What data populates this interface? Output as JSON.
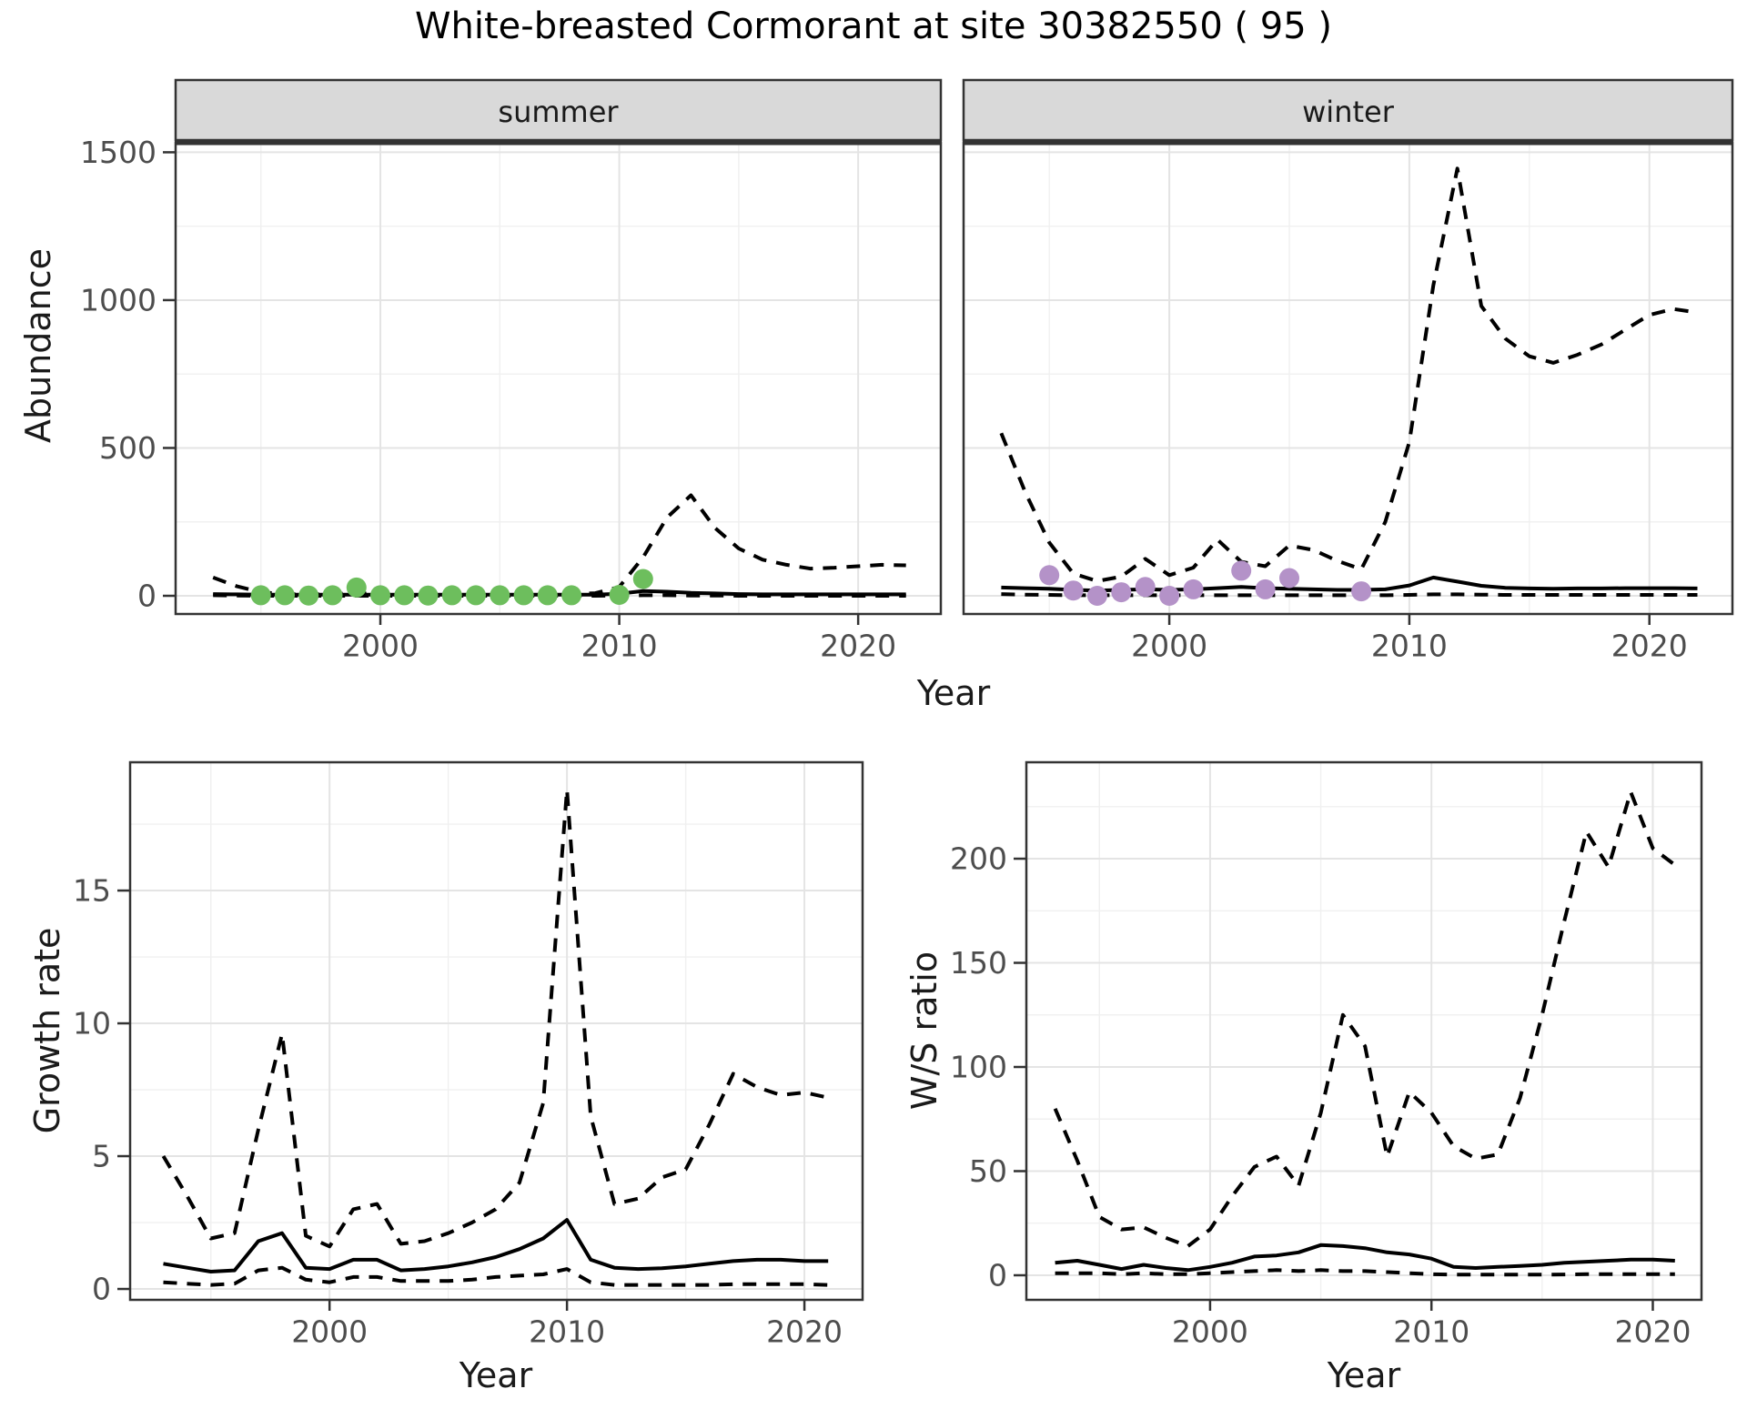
{
  "title": "White-breasted Cormorant at site 30382550 ( 95 )",
  "colors": {
    "summer_points": "#6dbe5d",
    "winter_points": "#b492c8",
    "line": "#000000",
    "strip_fill": "#d9d9d9",
    "strip_border": "#333333",
    "panel_border": "#333333",
    "grid_major": "#e4e4e4",
    "grid_minor": "#f0f0f0",
    "tick_mark": "#333333"
  },
  "chart_data": [
    {
      "type": "line",
      "facet_label": "summer",
      "xlabel": "Year",
      "ylabel": "Abundance",
      "xlim": [
        1993,
        2022
      ],
      "ylim": [
        0,
        1500
      ],
      "grid": true,
      "legend": "none",
      "x_ticks": [
        "2000",
        "2010",
        "2020"
      ],
      "x_tick_values": [
        2000,
        2010,
        2020
      ],
      "y_ticks": [
        "0",
        "500",
        "1000",
        "1500"
      ],
      "y_tick_values": [
        0,
        500,
        1000,
        1500
      ],
      "x": [
        1993,
        1994,
        1995,
        1996,
        1997,
        1998,
        1999,
        2000,
        2001,
        2002,
        2003,
        2004,
        2005,
        2006,
        2007,
        2008,
        2009,
        2010,
        2011,
        2012,
        2013,
        2014,
        2015,
        2016,
        2017,
        2018,
        2019,
        2020,
        2021,
        2022
      ],
      "series": [
        {
          "name": "fit",
          "line": "solid",
          "values": [
            6,
            5,
            4,
            4,
            4,
            4,
            4,
            4,
            4,
            4,
            4,
            4,
            4,
            4,
            4,
            4,
            4,
            7,
            16,
            14,
            10,
            8,
            6,
            5,
            5,
            5,
            5,
            5,
            5,
            5
          ]
        },
        {
          "name": "upper-ci",
          "line": "dashed",
          "values": [
            62,
            32,
            12,
            6,
            5,
            6,
            9,
            6,
            5,
            5,
            5,
            5,
            4,
            5,
            5,
            6,
            9,
            30,
            130,
            265,
            340,
            230,
            160,
            122,
            105,
            92,
            95,
            100,
            105,
            103
          ]
        },
        {
          "name": "lower-ci",
          "line": "dashed",
          "values": [
            2,
            1,
            0,
            0,
            0,
            0,
            0,
            0,
            0,
            0,
            0,
            0,
            0,
            0,
            0,
            0,
            0,
            1,
            2,
            2,
            1,
            1,
            0,
            0,
            0,
            0,
            0,
            0,
            0,
            0
          ]
        }
      ],
      "observations": {
        "color": "#6dbe5d",
        "x": [
          1995,
          1996,
          1997,
          1998,
          1999,
          2000,
          2001,
          2002,
          2003,
          2004,
          2005,
          2006,
          2007,
          2008,
          2010,
          2011
        ],
        "y": [
          2,
          2,
          1,
          2,
          28,
          2,
          2,
          1,
          2,
          2,
          2,
          2,
          2,
          2,
          3,
          57
        ]
      }
    },
    {
      "type": "line",
      "facet_label": "winter",
      "xlabel": "Year",
      "ylabel": "Abundance",
      "xlim": [
        1993,
        2022
      ],
      "ylim": [
        0,
        1500
      ],
      "grid": true,
      "legend": "none",
      "x_ticks": [
        "2000",
        "2010",
        "2020"
      ],
      "x_tick_values": [
        2000,
        2010,
        2020
      ],
      "y_ticks": [
        "0",
        "500",
        "1000",
        "1500"
      ],
      "y_tick_values": [
        0,
        500,
        1000,
        1500
      ],
      "x": [
        1993,
        1994,
        1995,
        1996,
        1997,
        1998,
        1999,
        2000,
        2001,
        2002,
        2003,
        2004,
        2005,
        2006,
        2007,
        2008,
        2009,
        2010,
        2011,
        2012,
        2013,
        2014,
        2015,
        2016,
        2017,
        2018,
        2019,
        2020,
        2021,
        2022
      ],
      "series": [
        {
          "name": "fit",
          "line": "solid",
          "values": [
            28,
            26,
            24,
            20,
            18,
            20,
            22,
            20,
            22,
            26,
            30,
            26,
            24,
            22,
            20,
            20,
            22,
            35,
            62,
            48,
            34,
            27,
            25,
            24,
            25,
            25,
            26,
            26,
            26,
            25
          ]
        },
        {
          "name": "upper-ci",
          "line": "dashed",
          "values": [
            550,
            350,
            180,
            75,
            50,
            65,
            125,
            70,
            95,
            190,
            115,
            100,
            170,
            155,
            118,
            90,
            250,
            520,
            1050,
            1445,
            980,
            870,
            810,
            788,
            815,
            850,
            900,
            950,
            970,
            958
          ]
        },
        {
          "name": "lower-ci",
          "line": "dashed",
          "values": [
            6,
            4,
            3,
            2,
            2,
            2,
            2,
            2,
            2,
            2,
            2,
            2,
            2,
            2,
            2,
            2,
            2,
            3,
            5,
            5,
            4,
            3,
            3,
            3,
            3,
            3,
            3,
            3,
            3,
            3
          ]
        }
      ],
      "observations": {
        "color": "#b492c8",
        "x": [
          1995,
          1996,
          1997,
          1998,
          1999,
          2000,
          2001,
          2003,
          2004,
          2005,
          2008
        ],
        "y": [
          70,
          18,
          0,
          12,
          30,
          0,
          22,
          85,
          22,
          60,
          15
        ]
      }
    },
    {
      "type": "line",
      "facet_label": null,
      "xlabel": "Year",
      "ylabel": "Growth rate",
      "xlim": [
        1993,
        2021
      ],
      "ylim": [
        0,
        18.8
      ],
      "grid": true,
      "legend": "none",
      "x_ticks": [
        "2000",
        "2010",
        "2020"
      ],
      "x_tick_values": [
        2000,
        2010,
        2020
      ],
      "y_ticks": [
        "0",
        "5",
        "10",
        "15"
      ],
      "y_tick_values": [
        0,
        5,
        10,
        15
      ],
      "x": [
        1993,
        1994,
        1995,
        1996,
        1997,
        1998,
        1999,
        2000,
        2001,
        2002,
        2003,
        2004,
        2005,
        2006,
        2007,
        2008,
        2009,
        2010,
        2011,
        2012,
        2013,
        2014,
        2015,
        2016,
        2017,
        2018,
        2019,
        2020,
        2021
      ],
      "series": [
        {
          "name": "fit",
          "line": "solid",
          "values": [
            0.95,
            0.8,
            0.65,
            0.7,
            1.8,
            2.1,
            0.8,
            0.75,
            1.1,
            1.1,
            0.7,
            0.75,
            0.85,
            1.0,
            1.2,
            1.5,
            1.9,
            2.6,
            1.1,
            0.8,
            0.75,
            0.78,
            0.85,
            0.95,
            1.05,
            1.1,
            1.1,
            1.05,
            1.05
          ]
        },
        {
          "name": "upper-ci",
          "line": "dashed",
          "values": [
            5.0,
            3.5,
            1.9,
            2.1,
            6.0,
            9.6,
            2.0,
            1.6,
            3.0,
            3.2,
            1.7,
            1.8,
            2.1,
            2.5,
            3.0,
            4.0,
            7.0,
            18.8,
            6.5,
            3.2,
            3.4,
            4.2,
            4.5,
            6.2,
            8.1,
            7.6,
            7.3,
            7.4,
            7.2
          ]
        },
        {
          "name": "lower-ci",
          "line": "dashed",
          "values": [
            0.25,
            0.2,
            0.15,
            0.2,
            0.7,
            0.8,
            0.35,
            0.25,
            0.45,
            0.45,
            0.3,
            0.3,
            0.3,
            0.35,
            0.45,
            0.5,
            0.55,
            0.75,
            0.25,
            0.15,
            0.15,
            0.15,
            0.15,
            0.15,
            0.18,
            0.18,
            0.18,
            0.18,
            0.15
          ]
        }
      ],
      "observations": null
    },
    {
      "type": "line",
      "facet_label": null,
      "xlabel": "Year",
      "ylabel": "W/S ratio",
      "xlim": [
        1993,
        2021
      ],
      "ylim": [
        0,
        232
      ],
      "grid": true,
      "legend": "none",
      "x_ticks": [
        "2000",
        "2010",
        "2020"
      ],
      "x_tick_values": [
        2000,
        2010,
        2020
      ],
      "y_ticks": [
        "0",
        "50",
        "100",
        "150",
        "200"
      ],
      "y_tick_values": [
        0,
        50,
        100,
        150,
        200
      ],
      "x": [
        1993,
        1994,
        1995,
        1996,
        1997,
        1998,
        1999,
        2000,
        2001,
        2002,
        2003,
        2004,
        2005,
        2006,
        2007,
        2008,
        2009,
        2010,
        2011,
        2012,
        2013,
        2014,
        2015,
        2016,
        2017,
        2018,
        2019,
        2020,
        2021
      ],
      "series": [
        {
          "name": "fit",
          "line": "solid",
          "values": [
            6,
            7,
            5,
            3,
            5,
            3.5,
            2.5,
            4,
            6,
            9,
            9.5,
            11,
            14.5,
            14,
            13,
            11,
            10,
            8,
            4,
            3.5,
            4,
            4.5,
            5,
            6,
            6.5,
            7,
            7.5,
            7.5,
            7
          ]
        },
        {
          "name": "upper-ci",
          "line": "dashed",
          "values": [
            80,
            55,
            28,
            22,
            23,
            18,
            14,
            22,
            38,
            52,
            57,
            43,
            78,
            125,
            110,
            57,
            88,
            78,
            62,
            56,
            58,
            85,
            125,
            170,
            213,
            196,
            232,
            205,
            197
          ]
        },
        {
          "name": "lower-ci",
          "line": "dashed",
          "values": [
            1,
            1,
            1,
            0.5,
            1,
            0.5,
            0.5,
            1,
            1.5,
            2,
            2.5,
            2,
            2.5,
            2,
            2,
            1.5,
            1,
            0.5,
            0.3,
            0.3,
            0.3,
            0.3,
            0.3,
            0.4,
            0.5,
            0.5,
            0.5,
            0.5,
            0.5
          ]
        }
      ],
      "observations": null
    }
  ]
}
